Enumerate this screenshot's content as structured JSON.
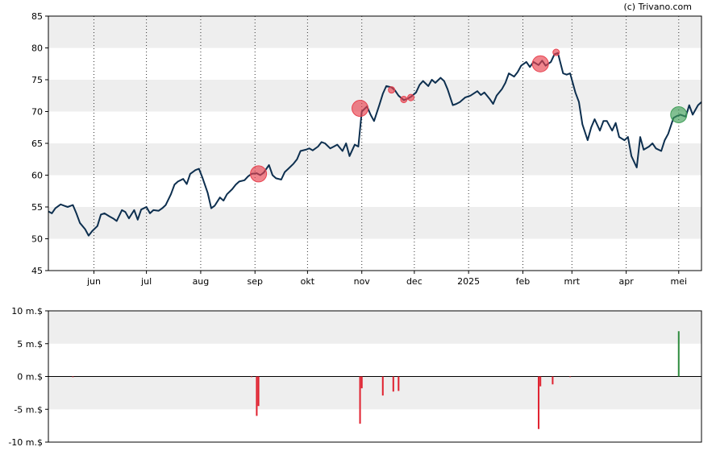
{
  "credit": "(c) Trivano.com",
  "chart_data": [
    {
      "type": "line",
      "name": "price",
      "ylim": [
        45,
        85
      ],
      "yticks": [
        45,
        50,
        55,
        60,
        65,
        70,
        75,
        80,
        85
      ],
      "grid": "alternating-bands-y, dotted-vertical-x",
      "x_start": "2024-05-06",
      "x_end": "2025-05-14",
      "month_ticks": [
        {
          "label": "jun",
          "date": "2024-06-01"
        },
        {
          "label": "jul",
          "date": "2024-07-01"
        },
        {
          "label": "aug",
          "date": "2024-08-01"
        },
        {
          "label": "sep",
          "date": "2024-09-01"
        },
        {
          "label": "okt",
          "date": "2024-10-01"
        },
        {
          "label": "nov",
          "date": "2024-11-01"
        },
        {
          "label": "dec",
          "date": "2024-12-01"
        },
        {
          "label": "2025",
          "date": "2025-01-01"
        },
        {
          "label": "feb",
          "date": "2025-02-01"
        },
        {
          "label": "mrt",
          "date": "2025-03-01"
        },
        {
          "label": "apr",
          "date": "2025-04-01"
        },
        {
          "label": "mei",
          "date": "2025-05-01"
        }
      ],
      "line_color": "#0d2f4f",
      "points": [
        [
          "2024-05-06",
          54.3
        ],
        [
          "2024-05-08",
          54.0
        ],
        [
          "2024-05-10",
          54.8
        ],
        [
          "2024-05-13",
          55.4
        ],
        [
          "2024-05-15",
          55.2
        ],
        [
          "2024-05-17",
          55.0
        ],
        [
          "2024-05-20",
          55.3
        ],
        [
          "2024-05-22",
          54.0
        ],
        [
          "2024-05-24",
          52.5
        ],
        [
          "2024-05-27",
          51.5
        ],
        [
          "2024-05-29",
          50.5
        ],
        [
          "2024-05-31",
          51.2
        ],
        [
          "2024-06-03",
          52.0
        ],
        [
          "2024-06-05",
          53.8
        ],
        [
          "2024-06-07",
          54.0
        ],
        [
          "2024-06-10",
          53.5
        ],
        [
          "2024-06-12",
          53.2
        ],
        [
          "2024-06-14",
          52.8
        ],
        [
          "2024-06-17",
          54.5
        ],
        [
          "2024-06-19",
          54.2
        ],
        [
          "2024-06-21",
          53.2
        ],
        [
          "2024-06-24",
          54.5
        ],
        [
          "2024-06-26",
          53.0
        ],
        [
          "2024-06-28",
          54.6
        ],
        [
          "2024-07-01",
          55.0
        ],
        [
          "2024-07-03",
          54.0
        ],
        [
          "2024-07-05",
          54.5
        ],
        [
          "2024-07-08",
          54.4
        ],
        [
          "2024-07-10",
          54.8
        ],
        [
          "2024-07-12",
          55.3
        ],
        [
          "2024-07-15",
          57.0
        ],
        [
          "2024-07-17",
          58.5
        ],
        [
          "2024-07-19",
          59.0
        ],
        [
          "2024-07-22",
          59.4
        ],
        [
          "2024-07-24",
          58.6
        ],
        [
          "2024-07-26",
          60.2
        ],
        [
          "2024-07-29",
          60.8
        ],
        [
          "2024-07-31",
          61.0
        ],
        [
          "2024-08-02",
          59.6
        ],
        [
          "2024-08-05",
          57.2
        ],
        [
          "2024-08-07",
          54.8
        ],
        [
          "2024-08-09",
          55.2
        ],
        [
          "2024-08-12",
          56.5
        ],
        [
          "2024-08-14",
          56.0
        ],
        [
          "2024-08-16",
          57.0
        ],
        [
          "2024-08-19",
          57.8
        ],
        [
          "2024-08-21",
          58.5
        ],
        [
          "2024-08-23",
          59.0
        ],
        [
          "2024-08-26",
          59.2
        ],
        [
          "2024-08-28",
          59.8
        ],
        [
          "2024-08-30",
          60.2
        ],
        [
          "2024-09-02",
          60.3
        ],
        [
          "2024-09-04",
          60.0
        ],
        [
          "2024-09-06",
          60.4
        ],
        [
          "2024-09-09",
          61.6
        ],
        [
          "2024-09-11",
          60.0
        ],
        [
          "2024-09-13",
          59.5
        ],
        [
          "2024-09-16",
          59.3
        ],
        [
          "2024-09-18",
          60.5
        ],
        [
          "2024-09-20",
          61.0
        ],
        [
          "2024-09-23",
          61.8
        ],
        [
          "2024-09-25",
          62.5
        ],
        [
          "2024-09-27",
          63.8
        ],
        [
          "2024-09-30",
          64.0
        ],
        [
          "2024-10-02",
          64.2
        ],
        [
          "2024-10-04",
          63.9
        ],
        [
          "2024-10-07",
          64.5
        ],
        [
          "2024-10-09",
          65.2
        ],
        [
          "2024-10-11",
          65.0
        ],
        [
          "2024-10-14",
          64.2
        ],
        [
          "2024-10-16",
          64.5
        ],
        [
          "2024-10-18",
          64.8
        ],
        [
          "2024-10-21",
          63.8
        ],
        [
          "2024-10-23",
          65.0
        ],
        [
          "2024-10-25",
          63.0
        ],
        [
          "2024-10-28",
          64.8
        ],
        [
          "2024-10-30",
          64.5
        ],
        [
          "2024-11-01",
          70.0
        ],
        [
          "2024-11-04",
          70.8
        ],
        [
          "2024-11-06",
          69.5
        ],
        [
          "2024-11-08",
          68.5
        ],
        [
          "2024-11-11",
          71.0
        ],
        [
          "2024-11-13",
          72.8
        ],
        [
          "2024-11-15",
          74.0
        ],
        [
          "2024-11-18",
          73.8
        ],
        [
          "2024-11-20",
          73.3
        ],
        [
          "2024-11-22",
          72.5
        ],
        [
          "2024-11-25",
          71.8
        ],
        [
          "2024-11-27",
          72.0
        ],
        [
          "2024-11-29",
          72.3
        ],
        [
          "2024-12-02",
          73.0
        ],
        [
          "2024-12-04",
          74.2
        ],
        [
          "2024-12-06",
          74.8
        ],
        [
          "2024-12-09",
          74.0
        ],
        [
          "2024-12-11",
          75.0
        ],
        [
          "2024-12-13",
          74.5
        ],
        [
          "2024-12-16",
          75.3
        ],
        [
          "2024-12-18",
          74.8
        ],
        [
          "2024-12-20",
          73.5
        ],
        [
          "2024-12-23",
          71.0
        ],
        [
          "2024-12-25",
          71.2
        ],
        [
          "2024-12-27",
          71.5
        ],
        [
          "2024-12-30",
          72.2
        ],
        [
          "2025-01-02",
          72.5
        ],
        [
          "2025-01-06",
          73.2
        ],
        [
          "2025-01-08",
          72.6
        ],
        [
          "2025-01-10",
          73.0
        ],
        [
          "2025-01-13",
          72.0
        ],
        [
          "2025-01-15",
          71.2
        ],
        [
          "2025-01-17",
          72.5
        ],
        [
          "2025-01-20",
          73.5
        ],
        [
          "2025-01-22",
          74.5
        ],
        [
          "2025-01-24",
          76.0
        ],
        [
          "2025-01-27",
          75.5
        ],
        [
          "2025-01-29",
          76.2
        ],
        [
          "2025-01-31",
          77.2
        ],
        [
          "2025-02-03",
          77.8
        ],
        [
          "2025-02-05",
          77.0
        ],
        [
          "2025-02-07",
          77.8
        ],
        [
          "2025-02-10",
          77.3
        ],
        [
          "2025-02-12",
          78.0
        ],
        [
          "2025-02-14",
          77.2
        ],
        [
          "2025-02-17",
          77.8
        ],
        [
          "2025-02-19",
          79.0
        ],
        [
          "2025-02-21",
          79.2
        ],
        [
          "2025-02-24",
          76.0
        ],
        [
          "2025-02-26",
          75.8
        ],
        [
          "2025-02-28",
          76.0
        ],
        [
          "2025-03-03",
          73.0
        ],
        [
          "2025-03-05",
          71.5
        ],
        [
          "2025-03-07",
          68.0
        ],
        [
          "2025-03-10",
          65.5
        ],
        [
          "2025-03-12",
          67.5
        ],
        [
          "2025-03-14",
          68.8
        ],
        [
          "2025-03-17",
          67.0
        ],
        [
          "2025-03-19",
          68.5
        ],
        [
          "2025-03-21",
          68.5
        ],
        [
          "2025-03-24",
          67.0
        ],
        [
          "2025-03-26",
          68.2
        ],
        [
          "2025-03-28",
          66.0
        ],
        [
          "2025-03-31",
          65.5
        ],
        [
          "2025-04-02",
          66.0
        ],
        [
          "2025-04-04",
          63.0
        ],
        [
          "2025-04-07",
          61.2
        ],
        [
          "2025-04-09",
          66.0
        ],
        [
          "2025-04-11",
          64.0
        ],
        [
          "2025-04-14",
          64.5
        ],
        [
          "2025-04-16",
          65.0
        ],
        [
          "2025-04-18",
          64.2
        ],
        [
          "2025-04-21",
          63.8
        ],
        [
          "2025-04-23",
          65.5
        ],
        [
          "2025-04-25",
          66.5
        ],
        [
          "2025-04-28",
          69.0
        ],
        [
          "2025-04-30",
          69.3
        ],
        [
          "2025-05-02",
          69.5
        ],
        [
          "2025-05-05",
          69.2
        ],
        [
          "2025-05-07",
          71.0
        ],
        [
          "2025-05-09",
          69.5
        ],
        [
          "2025-05-12",
          71.0
        ],
        [
          "2025-05-14",
          71.5
        ]
      ],
      "markers": [
        {
          "date": "2024-09-03",
          "y": 60.2,
          "kind": "sell",
          "size": "large"
        },
        {
          "date": "2024-10-31",
          "y": 70.5,
          "kind": "sell",
          "size": "large"
        },
        {
          "date": "2024-11-18",
          "y": 73.4,
          "kind": "sell",
          "size": "small"
        },
        {
          "date": "2024-11-25",
          "y": 71.9,
          "kind": "sell",
          "size": "small"
        },
        {
          "date": "2024-11-29",
          "y": 72.2,
          "kind": "sell",
          "size": "small"
        },
        {
          "date": "2025-02-11",
          "y": 77.5,
          "kind": "sell",
          "size": "large"
        },
        {
          "date": "2025-02-20",
          "y": 79.3,
          "kind": "sell",
          "size": "small"
        },
        {
          "date": "2025-05-01",
          "y": 69.5,
          "kind": "buy",
          "size": "large"
        }
      ],
      "marker_colors": {
        "sell": "#e8424f",
        "buy": "#3f9e58"
      }
    },
    {
      "type": "bar",
      "name": "insider-volume",
      "ylim": [
        -10,
        10
      ],
      "yticks": [
        {
          "value": 10,
          "label": "10 m.$"
        },
        {
          "value": 5,
          "label": "5 m.$"
        },
        {
          "value": 0,
          "label": "0 m.$"
        },
        {
          "value": -5,
          "label": "-5 m.$"
        },
        {
          "value": -10,
          "label": "-10 m.$"
        }
      ],
      "bar_colors": {
        "positive": "#2e8b3e",
        "negative": "#e0202e"
      },
      "bars": [
        {
          "date": "2024-05-20",
          "value": -0.1
        },
        {
          "date": "2024-08-30",
          "value": -0.1
        },
        {
          "date": "2024-09-02",
          "value": -6.0
        },
        {
          "date": "2024-09-03",
          "value": -4.5
        },
        {
          "date": "2024-10-31",
          "value": -7.2
        },
        {
          "date": "2024-11-01",
          "value": -1.8
        },
        {
          "date": "2024-11-13",
          "value": -2.9
        },
        {
          "date": "2024-11-19",
          "value": -2.3
        },
        {
          "date": "2024-11-22",
          "value": -2.2
        },
        {
          "date": "2025-02-10",
          "value": -8.0
        },
        {
          "date": "2025-02-11",
          "value": -1.5
        },
        {
          "date": "2025-02-18",
          "value": -1.2
        },
        {
          "date": "2025-02-28",
          "value": -0.1
        },
        {
          "date": "2025-05-01",
          "value": 6.9
        }
      ]
    }
  ]
}
